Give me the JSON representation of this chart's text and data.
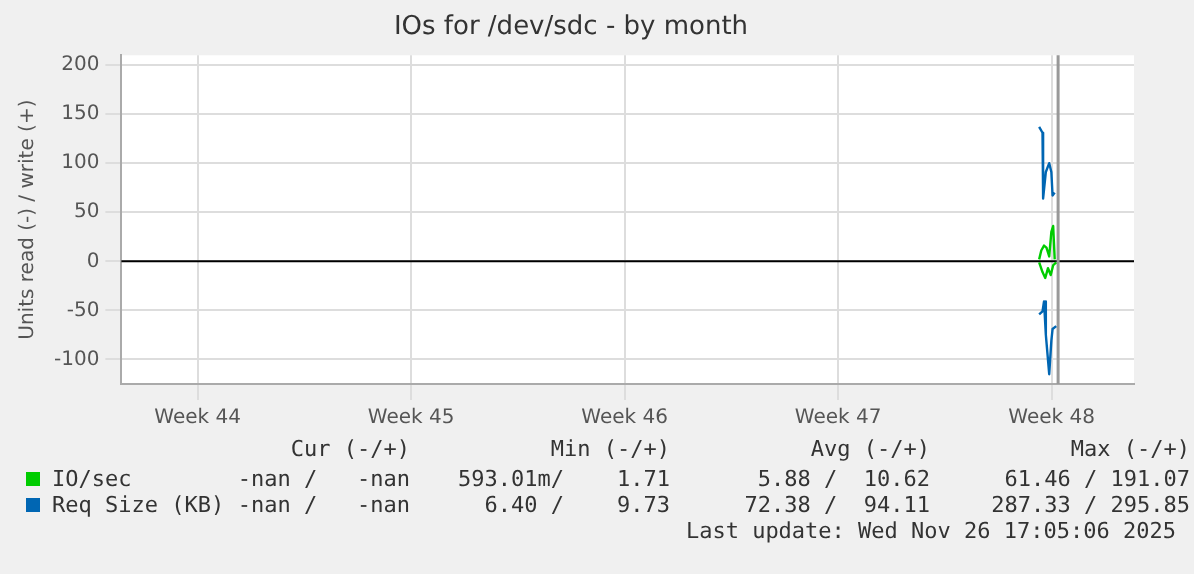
{
  "chart_data": {
    "type": "line",
    "title": "IOs for /dev/sdc - by month",
    "ylabel": "Units read (-) / write (+)",
    "xlim": [
      "2025-10-27T00:00",
      "2025-11-29T04:48"
    ],
    "xticks": [
      {
        "value": "2025-10-29T12:00",
        "label": "Week 44"
      },
      {
        "value": "2025-11-05T12:00",
        "label": "Week 45"
      },
      {
        "value": "2025-11-12T12:00",
        "label": "Week 46"
      },
      {
        "value": "2025-11-19T12:00",
        "label": "Week 47"
      },
      {
        "value": "2025-11-26T12:00",
        "label": "Week 48"
      }
    ],
    "ylim": [
      -125,
      210
    ],
    "yticks": [
      -100,
      -50,
      0,
      50,
      100,
      150,
      200
    ],
    "grid": true,
    "legend": "bottom",
    "line_style": "solid",
    "marker": "none",
    "series": [
      {
        "name": "IO/sec",
        "color": "#00cc00",
        "x": [
          "2025-11-26T02:10",
          "2025-11-26T03:50",
          "2025-11-26T06:00",
          "2025-11-26T07:55",
          "2025-11-26T10:05",
          "2025-11-26T11:46",
          "2025-11-26T13:12",
          "2025-11-26T14:24"
        ],
        "values": [
          2,
          11,
          16,
          14,
          5,
          30,
          36,
          2
        ]
      },
      {
        "color": "#00cc00",
        "x": [
          "2025-11-26T02:10",
          "2025-11-26T04:48",
          "2025-11-26T06:58",
          "2025-11-26T09:07",
          "2025-11-26T11:17",
          "2025-11-26T13:12",
          "2025-11-26T15:36"
        ],
        "values": [
          -1,
          -11,
          -17,
          -7,
          -14,
          -4,
          -1
        ]
      },
      {
        "name": "Req Size (KB)",
        "color": "#0066b3",
        "x": [
          "2025-11-26T02:10",
          "2025-11-26T04:48",
          "2025-11-26T05:17",
          "2025-11-26T07:26",
          "2025-11-26T10:05",
          "2025-11-26T11:46",
          "2025-11-26T12:43",
          "2025-11-26T14:24"
        ],
        "values": [
          137,
          131,
          64,
          91,
          100,
          91,
          67,
          70
        ]
      },
      {
        "color": "#0066b3",
        "x": [
          "2025-11-26T02:10",
          "2025-11-26T04:48",
          "2025-11-26T06:00",
          "2025-11-26T07:26",
          "2025-11-26T10:05",
          "2025-11-26T11:46",
          "2025-11-26T12:43",
          "2025-11-26T15:36"
        ],
        "values": [
          -54,
          -51,
          -41,
          -75,
          -115,
          -81,
          -69,
          -66
        ]
      }
    ],
    "ref_lines": [
      {
        "axis": "y",
        "value": 0,
        "color": "#000000"
      },
      {
        "axis": "x",
        "value": "2025-11-26T17:05",
        "color": "#999999"
      }
    ],
    "annotations": [
      "Cur (-/+)",
      "Min (-/+)",
      "Avg (-/+)",
      "Max (-/+)",
      "-nan /   -nan",
      "593.01m/    1.71",
      "5.88 /  10.62",
      "61.46 / 191.07",
      "-nan /   -nan",
      "6.40 /    9.73",
      "72.38 /  94.11",
      "287.33 / 295.85",
      "Last update: Wed Nov 26 17:05:06 2025"
    ]
  }
}
